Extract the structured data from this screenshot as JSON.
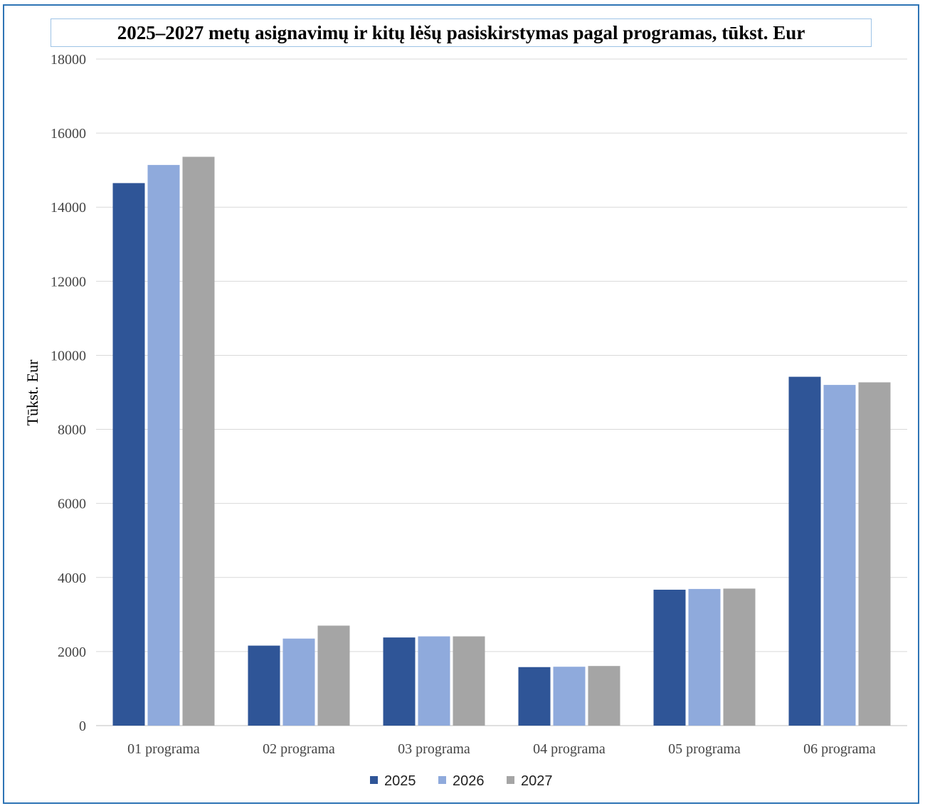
{
  "chart_data": {
    "type": "bar",
    "title": "2025–2027 metų asignavimų ir kitų lėšų pasiskirstymas pagal programas, tūkst. Eur",
    "ylabel": "Tūkst. Eur",
    "xlabel": "",
    "ylim": [
      0,
      18000
    ],
    "yticks": [
      "0",
      "2000",
      "4000",
      "6000",
      "8000",
      "10000",
      "12000",
      "14000",
      "16000",
      "18000"
    ],
    "categories": [
      "01 programa",
      "02 programa",
      "03 programa",
      "04 programa",
      "05 programa",
      "06 programa"
    ],
    "series": [
      {
        "name": "2025",
        "color": "#2f5597",
        "values": [
          14650,
          2160,
          2380,
          1580,
          3670,
          9420
        ]
      },
      {
        "name": "2026",
        "color": "#8faadc",
        "values": [
          15140,
          2350,
          2410,
          1590,
          3690,
          9200
        ]
      },
      {
        "name": "2027",
        "color": "#a5a5a5",
        "values": [
          15360,
          2700,
          2410,
          1610,
          3700,
          9270
        ]
      }
    ],
    "grid": true,
    "legend_position": "bottom"
  }
}
